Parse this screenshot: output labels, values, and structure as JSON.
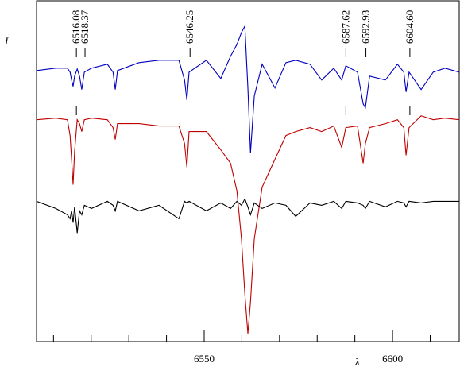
{
  "chart_data": {
    "type": "line",
    "ylabel": "I",
    "xlabel": "λ",
    "xlim": [
      6505.5,
      6617.7
    ],
    "ylim": [
      0,
      4.3
    ],
    "xticks": [
      6550,
      6600
    ],
    "xminor_ticks": [
      6510,
      6520,
      6530,
      6540,
      6560,
      6570,
      6580,
      6590,
      6610
    ],
    "annotations": [
      {
        "value": 6516.08,
        "label": "6516.08"
      },
      {
        "value": 6518.37,
        "label": "6518.37"
      },
      {
        "value": 6546.25,
        "label": "6546.25"
      },
      {
        "value": 6587.62,
        "label": "6587.62"
      },
      {
        "value": 6592.93,
        "label": "6592.93"
      },
      {
        "value": 6604.6,
        "label": "6604.60"
      }
    ],
    "x": [
      6505.5,
      6510.6,
      6513.7,
      6514.4,
      6514.8,
      6515.2,
      6515.6,
      6516.3,
      6516.9,
      6517.5,
      6518.2,
      6520.1,
      6524.3,
      6525.8,
      6526.4,
      6527.0,
      6532.7,
      6538.0,
      6543.3,
      6544.8,
      6545.4,
      6546.0,
      6550.6,
      6554.4,
      6557.0,
      6558.7,
      6559.9,
      6560.8,
      6561.6,
      6562.3,
      6563.3,
      6565.4,
      6568.8,
      6571.7,
      6574.3,
      6578.1,
      6581.2,
      6584.4,
      6586.5,
      6587.6,
      6590.7,
      6592.2,
      6592.8,
      6593.9,
      6598.1,
      6601.3,
      6603.0,
      6603.6,
      6604.4,
      6607.6,
      6610.8,
      6613.9,
      6617.7
    ],
    "series": [
      {
        "color": "#0000c0",
        "values": [
          3.42,
          3.45,
          3.45,
          3.4,
          3.3,
          3.22,
          3.35,
          3.44,
          3.35,
          3.18,
          3.4,
          3.45,
          3.5,
          3.4,
          3.18,
          3.42,
          3.52,
          3.55,
          3.55,
          3.3,
          3.05,
          3.4,
          3.55,
          3.32,
          3.6,
          3.75,
          3.9,
          3.98,
          3.2,
          2.38,
          3.1,
          3.5,
          3.2,
          3.52,
          3.55,
          3.5,
          3.3,
          3.45,
          3.3,
          3.48,
          3.4,
          3.0,
          2.95,
          3.35,
          3.3,
          3.5,
          3.4,
          3.15,
          3.4,
          3.18,
          3.4,
          3.45,
          3.4
        ]
      },
      {
        "color": "#c00000",
        "values": [
          2.8,
          2.82,
          2.8,
          2.6,
          2.3,
          1.98,
          2.4,
          2.8,
          2.75,
          2.65,
          2.8,
          2.82,
          2.8,
          2.7,
          2.55,
          2.75,
          2.75,
          2.72,
          2.72,
          2.5,
          2.2,
          2.65,
          2.65,
          2.42,
          2.25,
          1.9,
          1.3,
          0.6,
          0.1,
          0.5,
          1.3,
          1.95,
          2.3,
          2.6,
          2.65,
          2.7,
          2.65,
          2.72,
          2.45,
          2.7,
          2.72,
          2.25,
          2.5,
          2.7,
          2.75,
          2.8,
          2.7,
          2.35,
          2.7,
          2.85,
          2.8,
          2.82,
          2.8
        ]
      },
      {
        "color": "#000000",
        "values": [
          1.77,
          1.68,
          1.6,
          1.55,
          1.65,
          1.5,
          1.7,
          1.37,
          1.65,
          1.6,
          1.72,
          1.68,
          1.77,
          1.72,
          1.65,
          1.77,
          1.65,
          1.72,
          1.55,
          1.77,
          1.75,
          1.77,
          1.65,
          1.75,
          1.68,
          1.77,
          1.72,
          1.8,
          1.7,
          1.6,
          1.75,
          1.68,
          1.75,
          1.72,
          1.58,
          1.75,
          1.72,
          1.77,
          1.68,
          1.77,
          1.75,
          1.72,
          1.68,
          1.77,
          1.7,
          1.77,
          1.75,
          1.7,
          1.77,
          1.75,
          1.77,
          1.77,
          1.77
        ]
      }
    ]
  }
}
